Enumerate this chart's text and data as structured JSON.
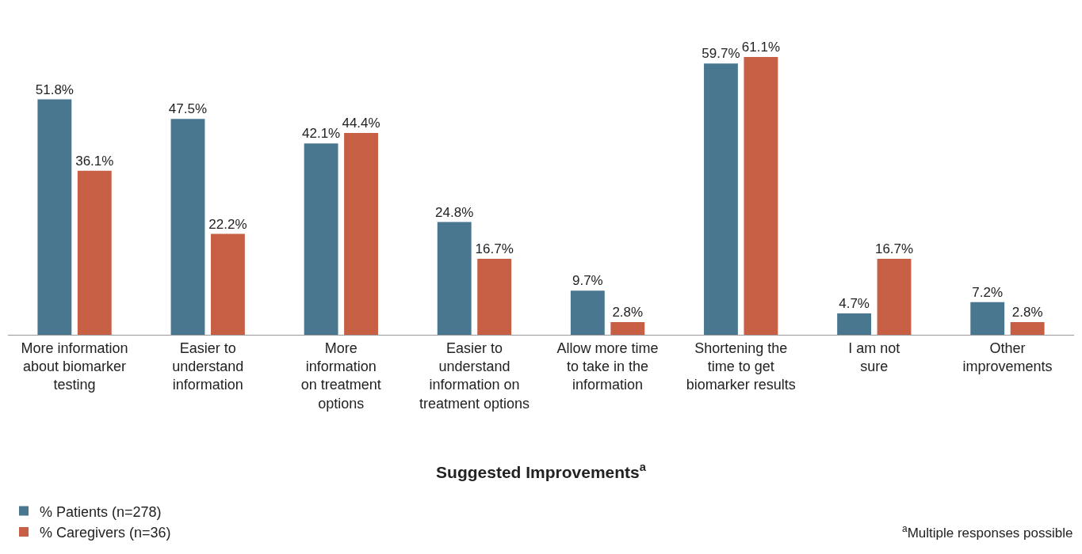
{
  "chart_data": {
    "type": "bar",
    "xlabel": "Suggested Improvements$^{a}$",
    "categories": [
      "More information\nabout biomarker\ntesting",
      "Easier to\nunderstand\ninformation",
      "More\ninformation\non treatment\noptions",
      "Easier to\nunderstand\ninformation on\ntreatment options",
      "Allow more time\nto take in the\ninformation",
      "Shortening the\ntime to get\nbiomarker results",
      "I am not\nsure",
      "Other\nimprovements"
    ],
    "series": [
      {
        "name": "% Patients (n=278)",
        "color": "#4a7790",
        "values": [
          51.8,
          47.5,
          42.1,
          24.8,
          9.7,
          59.7,
          4.7,
          7.2
        ],
        "value_labels": [
          "51.8%",
          "47.5%",
          "42.1%",
          "24.8%",
          "9.7%",
          "59.7%",
          "4.7%",
          "7.2%"
        ]
      },
      {
        "name": "% Caregivers (n=36)",
        "color": "#c65f43",
        "values": [
          36.1,
          22.2,
          44.4,
          16.7,
          2.8,
          61.1,
          16.7,
          2.8
        ],
        "value_labels": [
          "36.1%",
          "22.2%",
          "44.4%",
          "16.7%",
          "2.8%",
          "61.1%",
          "16.7%",
          "2.8%"
        ]
      }
    ],
    "legend": "bottom left",
    "annotations": [
      "$^{a}$Multiple responses possible"
    ]
  }
}
